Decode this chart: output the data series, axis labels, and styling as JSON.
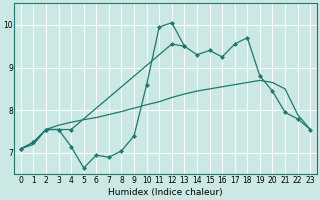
{
  "xlabel": "Humidex (Indice chaleur)",
  "bg_color": "#cce8e5",
  "grid_color": "#ffffff",
  "line_color": "#1a7a6e",
  "xlim": [
    -0.5,
    23.5
  ],
  "ylim": [
    6.5,
    10.5
  ],
  "yticks": [
    7,
    8,
    9,
    10
  ],
  "xticks": [
    0,
    1,
    2,
    3,
    4,
    5,
    6,
    7,
    8,
    9,
    10,
    11,
    12,
    13,
    14,
    15,
    16,
    17,
    18,
    19,
    20,
    21,
    22,
    23
  ],
  "line1_x": [
    0,
    1,
    2,
    3,
    4,
    5,
    6,
    7,
    8,
    9,
    10,
    11,
    12,
    13
  ],
  "line1_y": [
    7.1,
    7.25,
    7.55,
    7.55,
    7.15,
    6.65,
    6.95,
    6.9,
    7.05,
    7.4,
    8.6,
    9.95,
    10.05,
    9.5
  ],
  "line2_x": [
    0,
    1,
    2,
    3,
    4,
    12,
    13,
    14,
    15,
    16,
    17,
    18,
    19,
    20,
    21,
    22,
    23
  ],
  "line2_y": [
    7.1,
    7.25,
    7.55,
    7.55,
    7.55,
    9.55,
    9.5,
    9.3,
    9.4,
    9.25,
    9.55,
    9.7,
    8.8,
    8.45,
    7.95,
    7.8,
    7.55
  ],
  "line3_x": [
    0,
    1,
    2,
    3,
    4,
    5,
    6,
    7,
    8,
    9,
    10,
    11,
    12,
    13,
    14,
    15,
    16,
    17,
    18,
    19,
    20,
    21,
    22,
    23
  ],
  "line3_y": [
    7.1,
    7.2,
    7.55,
    7.65,
    7.72,
    7.78,
    7.83,
    7.9,
    7.97,
    8.05,
    8.13,
    8.2,
    8.3,
    8.38,
    8.45,
    8.5,
    8.55,
    8.6,
    8.65,
    8.7,
    8.65,
    8.5,
    7.9,
    7.55
  ]
}
